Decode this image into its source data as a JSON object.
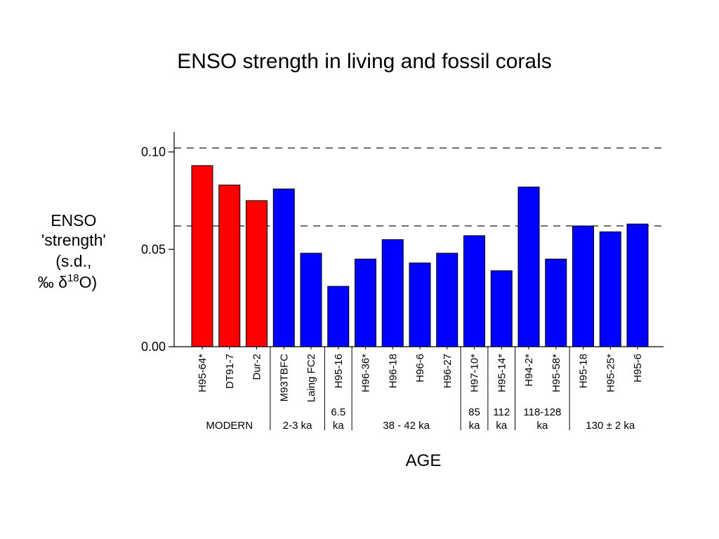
{
  "chart_data": {
    "type": "bar",
    "title": "ENSO strength in living and fossil corals",
    "xlabel": "AGE",
    "ylabel_lines": [
      "ENSO",
      "'strength'",
      "(s.d.,",
      "‰ δ",
      "18",
      "O)"
    ],
    "ylim": [
      0,
      0.11
    ],
    "yticks": [
      {
        "value": 0.0,
        "label": "0.00"
      },
      {
        "value": 0.05,
        "label": "0.05"
      },
      {
        "value": 0.1,
        "label": "0.10"
      }
    ],
    "reference_lines": [
      0.102,
      0.062
    ],
    "colors": {
      "modern": "#ff0000",
      "fossil": "#0000ff"
    },
    "categories": [
      "H95-64*",
      "DT91-7",
      "Dur-2",
      "M93TBFC",
      "Laing FC2",
      "H95-16",
      "H96-36*",
      "H96-18",
      "H96-6",
      "H96-27",
      "H97-10*",
      "H95-14*",
      "H94-2*",
      "H95-58*",
      "H95-18",
      "H95-25*",
      "H95-6"
    ],
    "values": [
      0.093,
      0.083,
      0.075,
      0.081,
      0.048,
      0.031,
      0.045,
      0.055,
      0.043,
      0.048,
      0.057,
      0.039,
      0.082,
      0.045,
      0.062,
      0.059,
      0.063
    ],
    "bar_colors": [
      "modern",
      "modern",
      "modern",
      "fossil",
      "fossil",
      "fossil",
      "fossil",
      "fossil",
      "fossil",
      "fossil",
      "fossil",
      "fossil",
      "fossil",
      "fossil",
      "fossil",
      "fossil",
      "fossil"
    ],
    "groups": [
      {
        "lines": [
          "MODERN"
        ],
        "start": 0,
        "end": 2
      },
      {
        "lines": [
          "2-3 ka"
        ],
        "start": 3,
        "end": 4
      },
      {
        "lines": [
          "6.5",
          "ka"
        ],
        "start": 5,
        "end": 5
      },
      {
        "lines": [
          "38 - 42 ka"
        ],
        "start": 6,
        "end": 9
      },
      {
        "lines": [
          "85",
          "ka"
        ],
        "start": 10,
        "end": 10
      },
      {
        "lines": [
          "112",
          "ka"
        ],
        "start": 11,
        "end": 11
      },
      {
        "lines": [
          "118-128",
          "ka"
        ],
        "start": 12,
        "end": 13
      },
      {
        "lines": [
          "130 ± 2 ka"
        ],
        "start": 14,
        "end": 16
      }
    ]
  }
}
